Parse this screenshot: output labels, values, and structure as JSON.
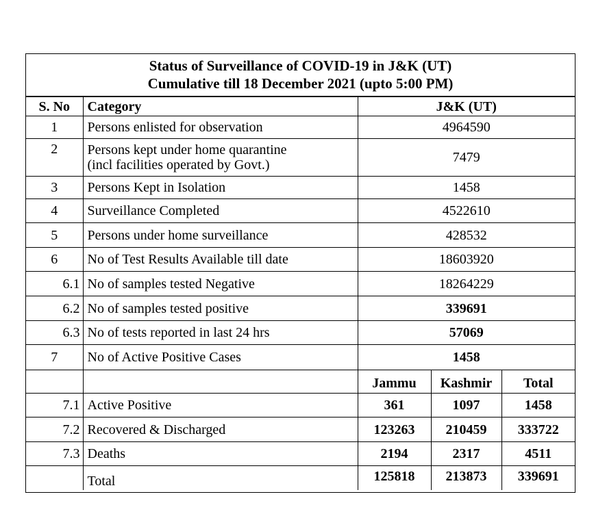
{
  "title": {
    "line1": "Status of Surveillance of COVID-19 in J&K (UT)",
    "line2": "Cumulative till 18 December 2021 (upto 5:00 PM)"
  },
  "header": {
    "sno": "S. No",
    "category": "Category",
    "value": "J&K (UT)"
  },
  "rows": [
    {
      "sno": "1",
      "category": "Persons enlisted for observation",
      "value": "4964590"
    },
    {
      "sno": "2",
      "category": "Persons kept under home quarantine",
      "category2": "(incl facilities operated by Govt.)",
      "value": "7479"
    },
    {
      "sno": "3",
      "category": "Persons Kept in Isolation",
      "value": "1458"
    },
    {
      "sno": "4",
      "category": "Surveillance  Completed",
      "value": "4522610"
    },
    {
      "sno": "5",
      "category": "Persons under home surveillance",
      "value": "428532"
    },
    {
      "sno": "6",
      "category": "No of Test Results Available till date",
      "value": "18603920"
    },
    {
      "sno": "6.1",
      "category": "No of samples tested Negative",
      "value": "18264229"
    },
    {
      "sno": "6.2",
      "category": "No of samples tested positive",
      "value": "339691"
    },
    {
      "sno": "6.3",
      "category": "No of tests reported in last 24 hrs",
      "value": "57069"
    },
    {
      "sno": "7",
      "category": "No of Active Positive Cases",
      "value": "1458"
    }
  ],
  "split_header": {
    "jammu": "Jammu",
    "kashmir": "Kashmir",
    "total": "Total"
  },
  "split_rows": [
    {
      "sno": "7.1",
      "category": "Active Positive",
      "jammu": "361",
      "kashmir": "1097",
      "total": "1458"
    },
    {
      "sno": "7.2",
      "category": "Recovered & Discharged",
      "jammu": "123263",
      "kashmir": "210459",
      "total": "333722"
    },
    {
      "sno": "7.3",
      "category": "Deaths",
      "jammu": "2194",
      "kashmir": "2317",
      "total": "4511"
    }
  ],
  "total_row": {
    "label": "Total",
    "jammu": "125818",
    "kashmir": "213873",
    "total": "339691"
  }
}
